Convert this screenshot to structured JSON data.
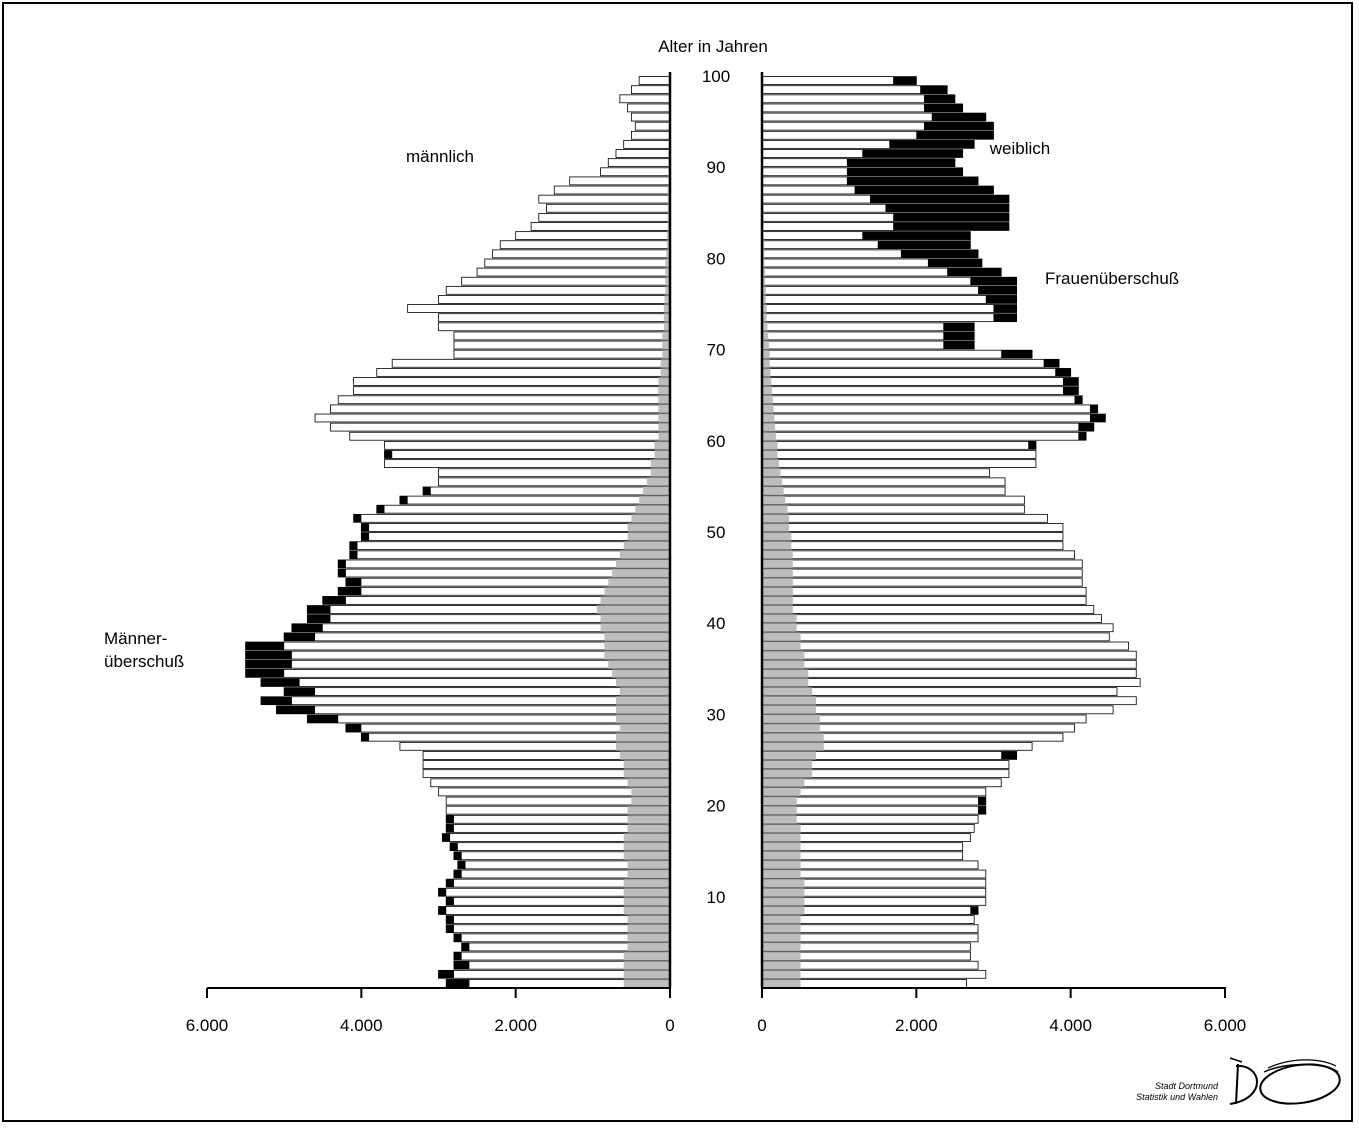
{
  "chart_data": {
    "type": "bar",
    "orientation": "horizontal",
    "subtype": "population-pyramid",
    "axis_title": "Alter in Jahren",
    "left_label": "männlich",
    "right_label": "weiblich",
    "annotations": {
      "male_surplus": [
        "Männer-",
        "überschuß"
      ],
      "female_surplus": "Frauenüberschuß"
    },
    "age_ticks": [
      "10",
      "20",
      "30",
      "40",
      "50",
      "60",
      "70",
      "80",
      "90",
      "100"
    ],
    "x_ticks_left": [
      "6.000",
      "4.000",
      "2.000",
      "0"
    ],
    "x_ticks_right": [
      "0",
      "2.000",
      "4.000",
      "6.000"
    ],
    "xlim": [
      0,
      6000
    ],
    "ylim": [
      0,
      100
    ],
    "legend": "none",
    "grid": false,
    "colors": {
      "total": "#ffffff",
      "surplus": "#000000",
      "foreign": "#bdbdbd",
      "border": "#000000"
    },
    "ages": [
      0,
      1,
      2,
      3,
      4,
      5,
      6,
      7,
      8,
      9,
      10,
      11,
      12,
      13,
      14,
      15,
      16,
      17,
      18,
      19,
      20,
      21,
      22,
      23,
      24,
      25,
      26,
      27,
      28,
      29,
      30,
      31,
      32,
      33,
      34,
      35,
      36,
      37,
      38,
      39,
      40,
      41,
      42,
      43,
      44,
      45,
      46,
      47,
      48,
      49,
      50,
      51,
      52,
      53,
      54,
      55,
      56,
      57,
      58,
      59,
      60,
      61,
      62,
      63,
      64,
      65,
      66,
      67,
      68,
      69,
      70,
      71,
      72,
      73,
      74,
      75,
      76,
      77,
      78,
      79,
      80,
      81,
      82,
      83,
      84,
      85,
      86,
      87,
      88,
      89,
      90,
      91,
      92,
      93,
      94,
      95,
      96,
      97,
      98,
      99
    ],
    "male": [
      2900,
      3000,
      2800,
      2800,
      2700,
      2800,
      2900,
      2900,
      3000,
      2900,
      3000,
      2900,
      2800,
      2750,
      2800,
      2850,
      2950,
      2900,
      2900,
      2900,
      2900,
      3000,
      3100,
      3200,
      3200,
      3200,
      3500,
      4000,
      4200,
      4700,
      5100,
      5300,
      5000,
      5300,
      5500,
      5500,
      5500,
      5500,
      5000,
      4900,
      4700,
      4700,
      4500,
      4300,
      4200,
      4300,
      4300,
      4150,
      4150,
      4000,
      4000,
      4100,
      3800,
      3500,
      3200,
      3000,
      3000,
      3700,
      3700,
      3700,
      4150,
      4400,
      4600,
      4400,
      4300,
      4100,
      4100,
      3800,
      3600,
      2800,
      2800,
      2800,
      3000,
      3000,
      3400,
      3000,
      2900,
      2700,
      2500,
      2400,
      2300,
      2200,
      2000,
      1800,
      1700,
      1600,
      1700,
      1500,
      1300,
      900,
      800,
      700,
      600,
      500,
      450,
      500,
      550,
      650,
      500,
      400
    ],
    "female": [
      2650,
      2900,
      2800,
      2700,
      2700,
      2800,
      2800,
      2750,
      2800,
      2900,
      2900,
      2900,
      2900,
      2800,
      2600,
      2600,
      2700,
      2750,
      2800,
      2900,
      2900,
      2900,
      3100,
      3200,
      3200,
      3300,
      3500,
      3900,
      4050,
      4200,
      4550,
      4850,
      4600,
      4900,
      4850,
      4850,
      4850,
      4750,
      4500,
      4550,
      4400,
      4300,
      4200,
      4200,
      4150,
      4150,
      4150,
      4050,
      3900,
      3900,
      3900,
      3700,
      3400,
      3400,
      3150,
      3150,
      2950,
      3550,
      3550,
      3550,
      4200,
      4300,
      4450,
      4350,
      4150,
      4100,
      4100,
      4000,
      3850,
      3500,
      2750,
      2750,
      2750,
      3300,
      3300,
      3300,
      3300,
      3300,
      3100,
      2850,
      2800,
      2700,
      2700,
      3200,
      3200,
      3200,
      3200,
      3000,
      2800,
      2600,
      2500,
      2600,
      2750,
      3000,
      3000,
      2900,
      2600,
      2500,
      2400,
      2000
    ],
    "male_surplus": [
      300,
      200,
      200,
      100,
      100,
      100,
      100,
      100,
      100,
      100,
      100,
      100,
      100,
      100,
      100,
      100,
      100,
      100,
      100,
      0,
      0,
      0,
      0,
      0,
      0,
      0,
      0,
      100,
      200,
      400,
      500,
      400,
      400,
      500,
      500,
      600,
      600,
      500,
      400,
      400,
      300,
      300,
      300,
      300,
      200,
      100,
      100,
      100,
      100,
      100,
      100,
      100,
      100,
      100,
      100,
      0,
      0,
      0,
      100,
      0,
      0,
      0,
      0,
      0,
      0,
      0,
      0,
      0,
      0,
      0,
      0,
      0,
      0,
      0,
      0,
      0,
      0,
      0,
      0,
      0,
      0,
      0,
      0,
      0,
      0,
      0,
      0,
      0,
      0,
      0,
      0,
      0,
      0,
      0,
      0,
      0,
      0,
      0,
      0,
      0
    ],
    "female_surplus": [
      0,
      0,
      0,
      0,
      0,
      0,
      0,
      0,
      100,
      0,
      0,
      0,
      0,
      0,
      0,
      0,
      0,
      0,
      0,
      100,
      100,
      0,
      0,
      0,
      0,
      200,
      0,
      0,
      0,
      0,
      0,
      0,
      0,
      0,
      0,
      0,
      0,
      0,
      0,
      0,
      0,
      0,
      0,
      0,
      0,
      0,
      0,
      0,
      0,
      0,
      0,
      0,
      0,
      0,
      0,
      0,
      0,
      0,
      0,
      100,
      100,
      200,
      200,
      100,
      100,
      200,
      200,
      200,
      200,
      400,
      400,
      400,
      400,
      300,
      300,
      400,
      500,
      600,
      700,
      700,
      1000,
      1200,
      1400,
      1500,
      1500,
      1600,
      1800,
      1800,
      1700,
      1500,
      1400,
      1300,
      1100,
      1000,
      900,
      700,
      500,
      400,
      350,
      300
    ],
    "male_foreign": [
      600,
      600,
      600,
      600,
      550,
      550,
      550,
      550,
      600,
      600,
      600,
      600,
      550,
      550,
      600,
      600,
      600,
      550,
      550,
      550,
      500,
      500,
      550,
      600,
      600,
      650,
      700,
      700,
      650,
      700,
      700,
      700,
      650,
      700,
      750,
      800,
      850,
      850,
      850,
      900,
      900,
      950,
      900,
      850,
      800,
      750,
      700,
      650,
      600,
      550,
      550,
      500,
      450,
      400,
      350,
      300,
      250,
      250,
      200,
      200,
      150,
      150,
      150,
      150,
      150,
      150,
      150,
      120,
      120,
      100,
      100,
      100,
      80,
      80,
      80,
      70,
      60,
      60,
      60,
      60,
      50,
      40,
      40,
      30,
      30,
      30,
      30,
      30,
      20,
      20,
      20,
      20,
      10,
      10,
      10,
      10,
      10,
      10,
      10,
      10
    ],
    "female_foreign": [
      500,
      500,
      500,
      500,
      500,
      500,
      500,
      500,
      550,
      550,
      550,
      550,
      500,
      500,
      500,
      500,
      500,
      500,
      450,
      450,
      450,
      500,
      550,
      650,
      650,
      700,
      800,
      800,
      750,
      750,
      700,
      700,
      650,
      600,
      600,
      550,
      550,
      500,
      500,
      450,
      450,
      400,
      400,
      400,
      400,
      400,
      400,
      400,
      380,
      380,
      350,
      350,
      330,
      300,
      280,
      260,
      240,
      220,
      200,
      200,
      180,
      170,
      160,
      150,
      140,
      130,
      120,
      110,
      100,
      100,
      90,
      80,
      70,
      60,
      60,
      50,
      50,
      40,
      40,
      30,
      30,
      30,
      20,
      20,
      20,
      20,
      10,
      10,
      10,
      10,
      10,
      10,
      10,
      10,
      10,
      10,
      10,
      10,
      10,
      10
    ]
  },
  "footer": {
    "org_line1": "Stadt Dortmund",
    "org_line2": "Statistik und Wahlen",
    "logo_text": "DO"
  }
}
